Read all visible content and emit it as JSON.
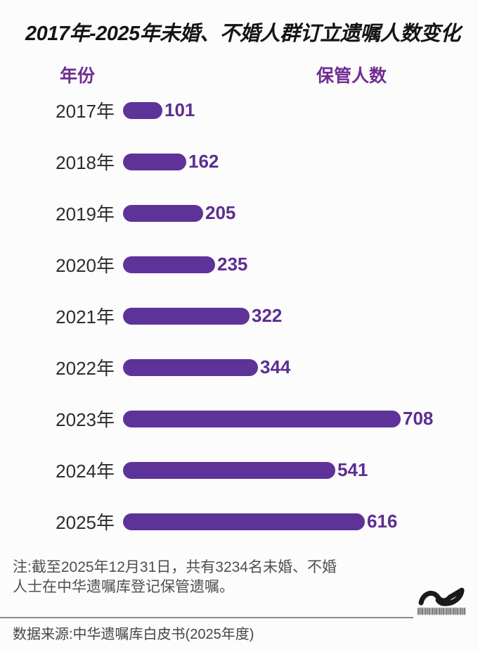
{
  "title": "2017年-2025年未婚、不婚人群订立遗嘱人数变化",
  "columns": {
    "year_header": "年份",
    "count_header": "保管人数"
  },
  "chart_data": {
    "type": "bar",
    "orientation": "horizontal",
    "title": "2017年-2025年未婚、不婚人群订立遗嘱人数变化",
    "xlabel": "保管人数",
    "ylabel": "年份",
    "categories": [
      "2017年",
      "2018年",
      "2019年",
      "2020年",
      "2021年",
      "2022年",
      "2023年",
      "2024年",
      "2025年"
    ],
    "values": [
      101,
      162,
      205,
      235,
      322,
      344,
      708,
      541,
      616
    ],
    "xlim": [
      0,
      708
    ],
    "grid": false,
    "legend": false,
    "bar_color": "#5e3399",
    "value_label_color": "#5c2e91"
  },
  "note": {
    "line1": "注:截至2025年12月31日，共有3234名未婚、不婚",
    "line2": "人士在中华遗嘱库登记保管遗嘱。"
  },
  "source": "数据来源:中华遗嘱库白皮书(2025年度)",
  "colors": {
    "accent_purple": "#5e3399",
    "header_purple": "#6e2d92",
    "title_black": "#141414",
    "note_gray": "#4f4f4f"
  }
}
